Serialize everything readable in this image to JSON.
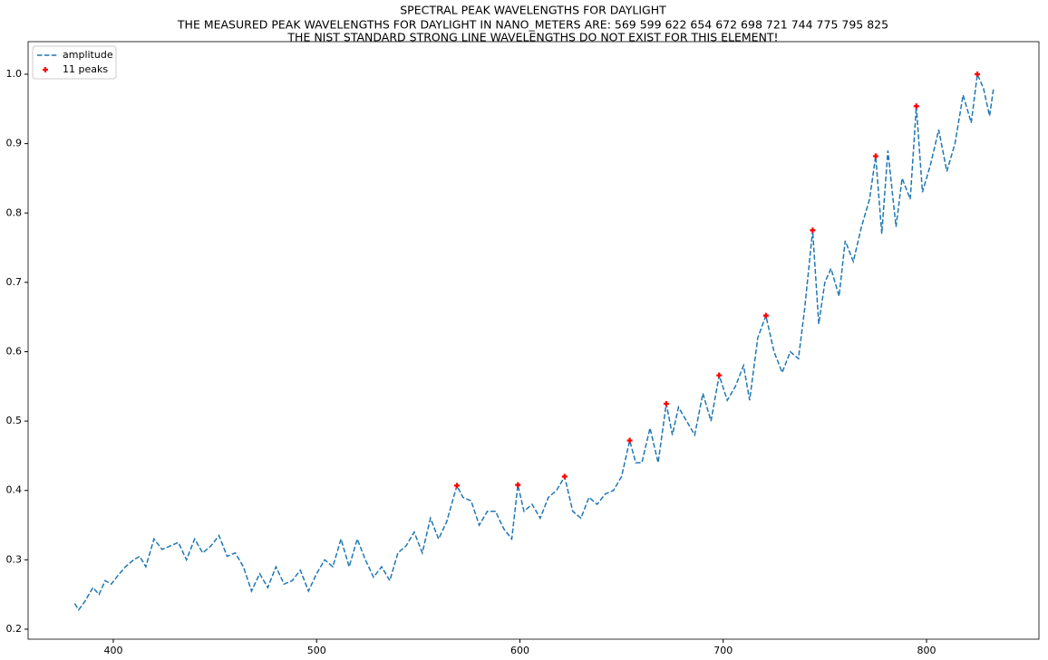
{
  "chart_data": {
    "type": "line",
    "title": "SPECTRAL PEAK WAVELENGTHS FOR DAYLIGHT",
    "subtitle": "THE MEASURED PEAK WAVELENGTHS FOR DAYLIGHT IN NANO_METERS ARE: 569 599 622 654 672 698 721 744 775 795 825",
    "annotation": "THE NIST STANDARD STRONG LINE WAVELENGTHS DO NOT EXIST FOR THIS ELEMENT!",
    "xlim": [
      358.1,
      855.3
    ],
    "ylim": [
      0.1856,
      1.047
    ],
    "xticks": [
      400,
      500,
      600,
      700,
      800
    ],
    "yticks": [
      0.2,
      0.3,
      0.4,
      0.5,
      0.6,
      0.7,
      0.8,
      0.9,
      {
        "value": 1.0,
        "label": "1.0"
      }
    ],
    "grid": false,
    "legend": "upper left",
    "series": [
      {
        "name": "amplitude",
        "color": "#1f77b4",
        "linestyle": "dashed",
        "x": [
          381,
          383,
          386,
          390,
          393,
          396,
          399,
          403,
          406,
          410,
          413,
          416,
          420,
          424,
          428,
          432,
          436,
          440,
          444,
          448,
          452,
          456,
          460,
          464,
          468,
          472,
          476,
          480,
          484,
          488,
          492,
          496,
          500,
          504,
          508,
          512,
          516,
          520,
          524,
          528,
          532,
          536,
          540,
          544,
          548,
          552,
          556,
          560,
          564,
          569,
          572,
          576,
          580,
          584,
          588,
          592,
          596,
          599,
          602,
          606,
          610,
          614,
          618,
          622,
          626,
          630,
          634,
          638,
          642,
          646,
          650,
          654,
          657,
          660,
          664,
          668,
          672,
          675,
          678,
          682,
          686,
          690,
          694,
          698,
          702,
          706,
          710,
          713,
          717,
          721,
          725,
          729,
          733,
          737,
          740,
          744,
          747,
          750,
          753,
          757,
          760,
          764,
          768,
          772,
          775,
          778,
          781,
          785,
          788,
          792,
          795,
          798,
          802,
          806,
          810,
          814,
          818,
          822,
          825,
          828,
          831,
          833
        ],
        "values": [
          0.237,
          0.228,
          0.24,
          0.26,
          0.25,
          0.27,
          0.265,
          0.28,
          0.29,
          0.3,
          0.305,
          0.29,
          0.33,
          0.315,
          0.32,
          0.325,
          0.3,
          0.33,
          0.31,
          0.32,
          0.335,
          0.305,
          0.31,
          0.29,
          0.255,
          0.28,
          0.26,
          0.29,
          0.265,
          0.27,
          0.285,
          0.255,
          0.28,
          0.3,
          0.29,
          0.33,
          0.29,
          0.33,
          0.3,
          0.275,
          0.29,
          0.27,
          0.31,
          0.32,
          0.34,
          0.31,
          0.36,
          0.33,
          0.355,
          0.407,
          0.39,
          0.385,
          0.35,
          0.37,
          0.37,
          0.345,
          0.33,
          0.408,
          0.37,
          0.38,
          0.36,
          0.39,
          0.4,
          0.42,
          0.37,
          0.36,
          0.39,
          0.38,
          0.395,
          0.4,
          0.42,
          0.472,
          0.44,
          0.44,
          0.49,
          0.44,
          0.525,
          0.48,
          0.52,
          0.5,
          0.48,
          0.54,
          0.5,
          0.566,
          0.53,
          0.55,
          0.58,
          0.53,
          0.62,
          0.652,
          0.6,
          0.57,
          0.6,
          0.59,
          0.66,
          0.775,
          0.64,
          0.7,
          0.72,
          0.68,
          0.76,
          0.73,
          0.78,
          0.82,
          0.882,
          0.77,
          0.89,
          0.78,
          0.85,
          0.82,
          0.954,
          0.83,
          0.87,
          0.92,
          0.86,
          0.9,
          0.97,
          0.93,
          1.0,
          0.98,
          0.94,
          0.98
        ]
      },
      {
        "name": "11 peaks",
        "color": "#ff0000",
        "marker": "+",
        "x": [
          569,
          599,
          622,
          654,
          672,
          698,
          721,
          744,
          775,
          795,
          825
        ],
        "values": [
          0.407,
          0.408,
          0.42,
          0.472,
          0.525,
          0.566,
          0.652,
          0.775,
          0.882,
          0.954,
          1.0
        ]
      }
    ]
  }
}
